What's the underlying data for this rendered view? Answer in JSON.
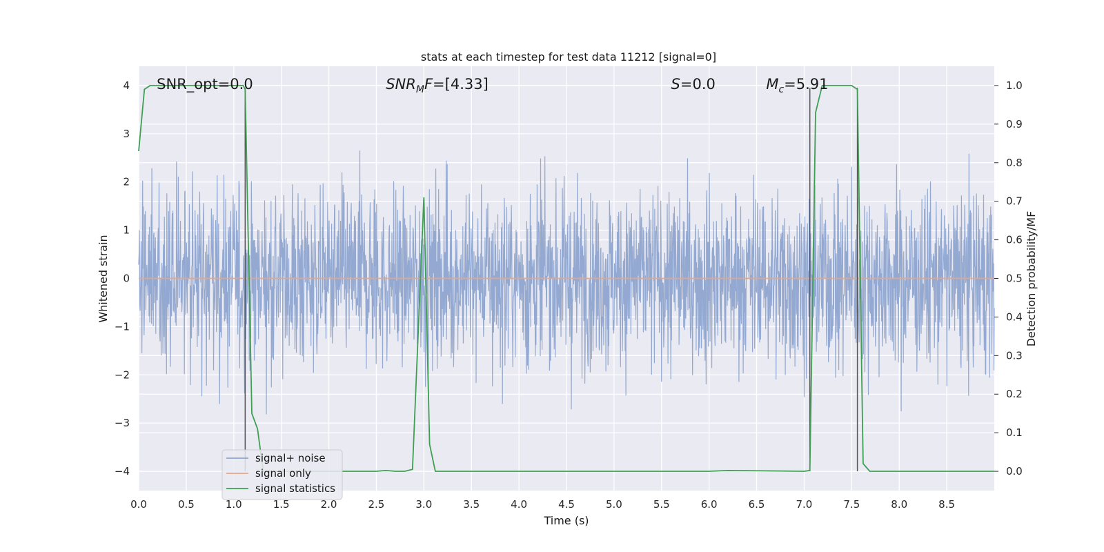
{
  "chart_data": {
    "type": "line",
    "title": "stats at each timestep for test data 11212 [signal=0]",
    "xlabel": "Time (s)",
    "ylabel": "Whitened strain",
    "ylabel_right": "Detection probability/MF",
    "xlim": [
      0,
      9
    ],
    "ylim": [
      -4.4,
      4.4
    ],
    "ylim_right": [
      -0.05,
      1.05
    ],
    "x_ticks": [
      0.0,
      0.5,
      1.0,
      1.5,
      2.0,
      2.5,
      3.0,
      3.5,
      4.0,
      4.5,
      5.0,
      5.5,
      6.0,
      6.5,
      7.0,
      7.5,
      8.0,
      8.5
    ],
    "x_tick_labels": [
      "0.0",
      "0.5",
      "1.0",
      "1.5",
      "2.0",
      "2.5",
      "3.0",
      "3.5",
      "4.0",
      "4.5",
      "5.0",
      "5.5",
      "6.0",
      "6.5",
      "7.0",
      "7.5",
      "8.0",
      "8.5"
    ],
    "y_ticks": [
      -4,
      -3,
      -2,
      -1,
      0,
      1,
      2,
      3,
      4
    ],
    "y_tick_labels": [
      "−4",
      "−3",
      "−2",
      "−1",
      "0",
      "1",
      "2",
      "3",
      "4"
    ],
    "y_right_ticks": [
      0.0,
      0.1,
      0.2,
      0.3,
      0.4,
      0.5,
      0.6,
      0.7,
      0.8,
      0.9,
      1.0
    ],
    "y_right_tick_labels": [
      "0.0",
      "0.1",
      "0.2",
      "0.3",
      "0.4",
      "0.5",
      "0.6",
      "0.7",
      "0.8",
      "0.9",
      "1.0"
    ],
    "grid": true,
    "legend_placement": "lower-left",
    "annotations": [
      {
        "plain": "SNR_opt=0.0",
        "x": 0.19,
        "y": 4.03
      },
      {
        "italic": "SNR",
        "sub": "M",
        "italic2": "F",
        "rest": "=[4.33]",
        "x": 2.6,
        "y": 4.03
      },
      {
        "italic": "S",
        "rest": "=0.0",
        "x": 5.6,
        "y": 4.03
      },
      {
        "italic": "M",
        "sub": "c",
        "rest": "=5.91",
        "x": 6.6,
        "y": 4.03
      }
    ],
    "vertical_lines": [
      1.12,
      7.06,
      7.56
    ],
    "series": [
      {
        "name": "signal+ noise",
        "color": "#8fa5cf",
        "description": "whitened noise, approx. Gaussian, range about -3.7 to 3.9",
        "amplitude_envelope": 4.0
      },
      {
        "name": "signal only",
        "color": "#e5a58a",
        "values_constant": 0.0
      },
      {
        "name": "signal statistics",
        "color": "#3f9e52",
        "axis": "right",
        "x": [
          0.0,
          0.06,
          0.12,
          0.5,
          1.0,
          1.1,
          1.12,
          1.19,
          1.25,
          1.31,
          1.5,
          2.0,
          2.5,
          2.6,
          2.7,
          2.8,
          2.88,
          3.0,
          3.06,
          3.12,
          3.5,
          4.0,
          5.0,
          6.0,
          6.2,
          7.0,
          7.06,
          7.12,
          7.19,
          7.25,
          7.5,
          7.56,
          7.62,
          7.69,
          8.0,
          8.5,
          9.0
        ],
        "values": [
          0.83,
          0.99,
          1.0,
          1.0,
          1.0,
          1.0,
          0.99,
          0.15,
          0.11,
          0.0,
          0.0,
          0.0,
          0.0,
          0.002,
          0.0,
          0.0,
          0.005,
          0.71,
          0.07,
          0.0,
          0.0,
          0.0,
          0.0,
          0.0,
          0.002,
          0.0,
          0.002,
          0.93,
          1.0,
          1.0,
          1.0,
          0.99,
          0.02,
          0.0,
          0.0,
          0.0,
          0.0
        ]
      }
    ]
  }
}
